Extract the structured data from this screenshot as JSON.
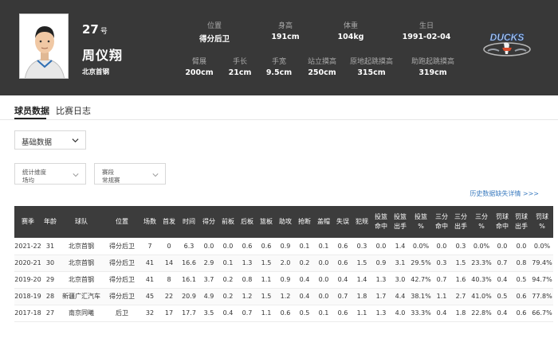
{
  "player": {
    "jersey_number": "27",
    "jersey_suffix": "号",
    "name": "周仪翔",
    "team": "北京首钢"
  },
  "attributes_row1": [
    {
      "label": "位置",
      "value": "得分后卫"
    },
    {
      "label": "身高",
      "value": "191cm"
    },
    {
      "label": "体重",
      "value": "104kg"
    },
    {
      "label": "生日",
      "value": "1991-02-04"
    }
  ],
  "attributes_row2": [
    {
      "label": "臂展",
      "value": "200cm"
    },
    {
      "label": "手长",
      "value": "21cm"
    },
    {
      "label": "手宽",
      "value": "9.5cm"
    },
    {
      "label": "站立摸高",
      "value": "250cm"
    },
    {
      "label": "原地起跳摸高",
      "value": "315cm"
    },
    {
      "label": "助跑起跳摸高",
      "value": "319cm"
    }
  ],
  "logo": {
    "text": "DUCKS",
    "icon": "beijing-ducks-logo"
  },
  "tabs": [
    {
      "label": "球员数据",
      "active": true
    },
    {
      "label": "比赛日志",
      "active": false
    }
  ],
  "data_select": {
    "value": "基础数据",
    "icon": "chevron-down-icon"
  },
  "filters": [
    {
      "label": "统计维度",
      "value": "场均"
    },
    {
      "label": "赛段",
      "value": "常规赛"
    }
  ],
  "history_link": "历史数据缺失详情 >>>",
  "table": {
    "headers": [
      "赛季",
      "年龄",
      "球队",
      "位置",
      "场数",
      "首发",
      "时间",
      "得分",
      "前板",
      "后板",
      "篮板",
      "助攻",
      "抢断",
      "盖帽",
      "失误",
      "犯规",
      "投篮\n命中",
      "投篮\n出手",
      "投篮\n%",
      "三分\n命中",
      "三分\n出手",
      "三分\n%",
      "罚球\n命中",
      "罚球\n出手",
      "罚球\n%"
    ],
    "rows": [
      [
        "2021-22",
        "31",
        "北京首钢",
        "得分后卫",
        "7",
        "0",
        "6.3",
        "0.0",
        "0.0",
        "0.6",
        "0.6",
        "0.9",
        "0.1",
        "0.1",
        "0.6",
        "0.3",
        "0.0",
        "1.4",
        "0.0%",
        "0.0",
        "0.3",
        "0.0%",
        "0.0",
        "0.0",
        "0.0%"
      ],
      [
        "2020-21",
        "30",
        "北京首钢",
        "得分后卫",
        "41",
        "14",
        "16.6",
        "2.9",
        "0.1",
        "1.3",
        "1.5",
        "2.0",
        "0.2",
        "0.0",
        "0.6",
        "1.5",
        "0.9",
        "3.1",
        "29.5%",
        "0.3",
        "1.5",
        "23.3%",
        "0.7",
        "0.8",
        "79.4%"
      ],
      [
        "2019-20",
        "29",
        "北京首钢",
        "得分后卫",
        "41",
        "8",
        "16.1",
        "3.7",
        "0.2",
        "0.8",
        "1.1",
        "0.9",
        "0.4",
        "0.0",
        "0.4",
        "1.4",
        "1.3",
        "3.0",
        "42.7%",
        "0.7",
        "1.6",
        "40.3%",
        "0.4",
        "0.5",
        "94.7%"
      ],
      [
        "2018-19",
        "28",
        "新疆广汇汽车",
        "得分后卫",
        "45",
        "22",
        "20.9",
        "4.9",
        "0.2",
        "1.2",
        "1.5",
        "1.2",
        "0.4",
        "0.0",
        "0.7",
        "1.8",
        "1.7",
        "4.4",
        "38.1%",
        "1.1",
        "2.7",
        "41.0%",
        "0.5",
        "0.6",
        "77.8%"
      ],
      [
        "2017-18",
        "27",
        "南京同曦",
        "后卫",
        "32",
        "17",
        "17.7",
        "3.5",
        "0.4",
        "0.7",
        "1.1",
        "0.6",
        "0.5",
        "0.1",
        "0.6",
        "1.1",
        "1.3",
        "4.0",
        "33.3%",
        "0.4",
        "1.8",
        "22.8%",
        "0.4",
        "0.6",
        "66.7%"
      ]
    ]
  }
}
